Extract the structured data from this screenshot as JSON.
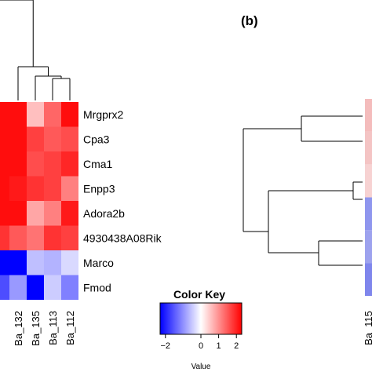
{
  "figure": {
    "panel_b_label": "(b)"
  },
  "chart_data": [
    {
      "type": "heatmap",
      "panel": "a",
      "rows": [
        "Mrgprx2",
        "Cpa3",
        "Cma1",
        "Enpp3",
        "Adora2b",
        "4930438A08Rik",
        "Marco",
        "Fmod"
      ],
      "columns": [
        "Ba_132",
        "Ba_135",
        "Ba_113",
        "Ba_112"
      ],
      "leading_column_partial": true,
      "leading_column_values": [
        1.9,
        1.9,
        1.9,
        1.9,
        1.9,
        1.6,
        -2.1,
        -1.4
      ],
      "values": [
        [
          1.9,
          0.5,
          1.2,
          1.9
        ],
        [
          1.9,
          1.5,
          1.3,
          1.4
        ],
        [
          1.9,
          1.4,
          1.5,
          1.7
        ],
        [
          1.8,
          1.6,
          1.5,
          1.0
        ],
        [
          1.9,
          0.7,
          1.0,
          1.8
        ],
        [
          1.3,
          1.1,
          1.6,
          1.5
        ],
        [
          -2.2,
          -0.5,
          -0.6,
          -0.3
        ],
        [
          -0.8,
          -2.3,
          -0.4,
          -1.0
        ]
      ],
      "column_dendrogram": true,
      "color_scale": {
        "low": "#0000ff",
        "mid": "#ffffff",
        "high": "#ff0000",
        "min": -2,
        "max": 2
      }
    },
    {
      "type": "heatmap",
      "panel": "b",
      "columns": [
        "Ba_115"
      ],
      "rows_count": 6,
      "cell_colors": [
        "#f4bcbc",
        "#f4c4c4",
        "#f7d2d2",
        "#8f96ee",
        "#9da2ee",
        "#7f86ec"
      ],
      "row_dendrogram": true
    }
  ],
  "color_key": {
    "title": "Color Key",
    "xlabel": "Value",
    "ticks": [
      "−2",
      "0",
      "1",
      "2"
    ],
    "tick_values": [
      -2,
      0,
      1,
      2
    ],
    "range": [
      -2.3,
      2.3
    ]
  }
}
